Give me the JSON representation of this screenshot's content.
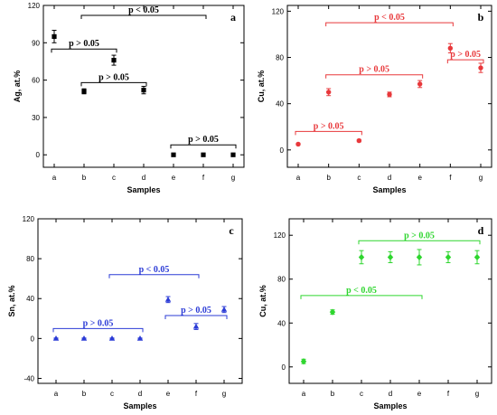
{
  "chart_data": [
    {
      "type": "scatter",
      "panel_label": "a",
      "xlabel": "Samples",
      "ylabel": "Ag, at.%",
      "categories": [
        "a",
        "b",
        "c",
        "d",
        "e",
        "f",
        "g"
      ],
      "ylim": [
        -10,
        120
      ],
      "yticks": [
        0,
        30,
        60,
        90,
        120
      ],
      "color": "#000000",
      "marker": "square",
      "series": [
        {
          "values": [
            95,
            51,
            76,
            52,
            0,
            0,
            0
          ],
          "errors": [
            5,
            2,
            4,
            3,
            0.5,
            0.5,
            0.5
          ]
        }
      ],
      "annotations": [
        {
          "text": "p < 0.05",
          "from": "b",
          "to": "f",
          "y": 112
        },
        {
          "text": "p > 0.05",
          "from": "a",
          "to": "c",
          "y": 85
        },
        {
          "text": "p > 0.05",
          "from": "b",
          "to": "d",
          "y": 58
        },
        {
          "text": "p > 0.05",
          "from": "e",
          "to": "g",
          "y": 8
        }
      ]
    },
    {
      "type": "scatter",
      "panel_label": "b",
      "xlabel": "Samples",
      "ylabel": "Cu, at.%",
      "categories": [
        "a",
        "b",
        "c",
        "d",
        "e",
        "f",
        "g"
      ],
      "ylim": [
        -15,
        125
      ],
      "yticks": [
        0,
        40,
        80,
        120
      ],
      "color": "#e8383b",
      "marker": "circle",
      "series": [
        {
          "values": [
            5,
            50,
            8,
            48,
            57,
            88,
            71
          ],
          "errors": [
            0.8,
            3,
            1,
            2,
            3,
            4,
            4
          ]
        }
      ],
      "annotations": [
        {
          "text": "p < 0.05",
          "from": "b",
          "to": "f",
          "y": 110
        },
        {
          "text": "p > 0.05",
          "from": "b",
          "to": "e",
          "y": 65
        },
        {
          "text": "p > 0.05",
          "from": "f",
          "to": "g",
          "y": 78
        },
        {
          "text": "p > 0.05",
          "from": "a",
          "to": "c",
          "y": 16
        }
      ]
    },
    {
      "type": "scatter",
      "panel_label": "c",
      "xlabel": "Samples",
      "ylabel": "Sn, at.%",
      "categories": [
        "a",
        "b",
        "c",
        "d",
        "e",
        "f",
        "g"
      ],
      "ylim": [
        -45,
        120
      ],
      "yticks": [
        -40,
        0,
        40,
        80,
        120
      ],
      "color": "#2b3bd6",
      "marker": "triangle",
      "series": [
        {
          "values": [
            0,
            0,
            0,
            0,
            39,
            12,
            29
          ],
          "errors": [
            0.5,
            0.5,
            0.5,
            0.5,
            3,
            3,
            3
          ]
        }
      ],
      "annotations": [
        {
          "text": "p < 0.05",
          "from": "c",
          "to": "f",
          "y": 64
        },
        {
          "text": "p > 0.05",
          "from": "a",
          "to": "d",
          "y": 10
        },
        {
          "text": "p > 0.05",
          "from": "e",
          "to": "g",
          "y": 23
        }
      ]
    },
    {
      "type": "scatter",
      "panel_label": "d",
      "xlabel": "Samples",
      "ylabel": "Cu, at.%",
      "categories": [
        "a",
        "b",
        "c",
        "d",
        "e",
        "f",
        "g"
      ],
      "ylim": [
        -15,
        135
      ],
      "yticks": [
        0,
        40,
        80,
        120
      ],
      "color": "#2fd62f",
      "marker": "diamond",
      "series": [
        {
          "values": [
            5,
            50,
            100,
            100,
            100,
            100,
            100
          ],
          "errors": [
            2,
            2,
            6,
            5,
            7,
            5,
            6
          ]
        }
      ],
      "annotations": [
        {
          "text": "p > 0.05",
          "from": "c",
          "to": "g",
          "y": 115
        },
        {
          "text": "p < 0.05",
          "from": "a",
          "to": "e",
          "y": 65
        }
      ]
    }
  ]
}
